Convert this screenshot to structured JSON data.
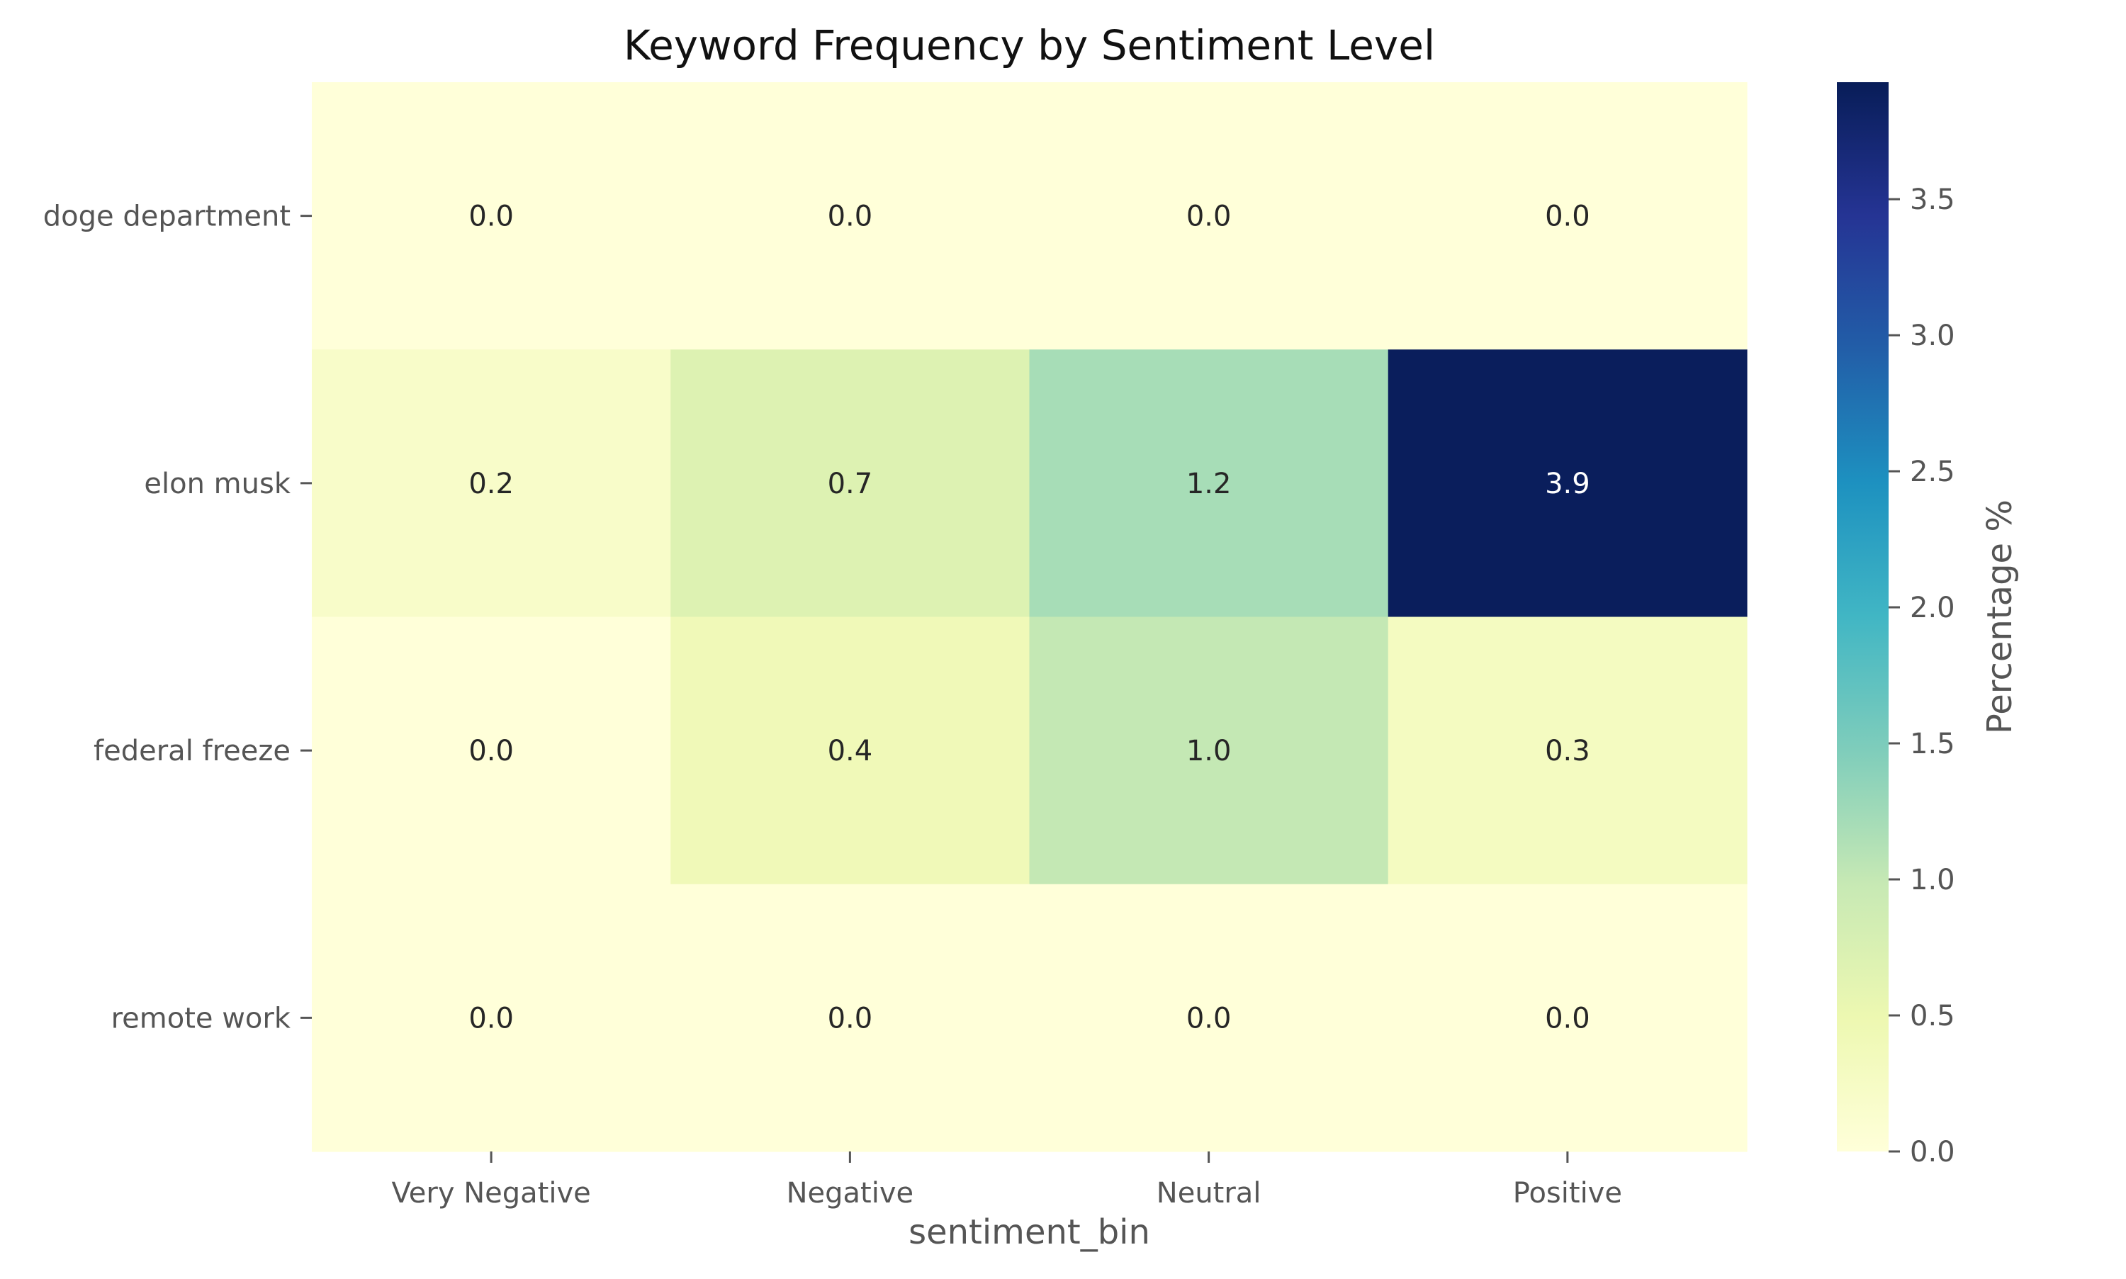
{
  "chart_data": {
    "type": "heatmap",
    "title": "Keyword Frequency by Sentiment Level",
    "xlabel": "sentiment_bin",
    "ylabel": "",
    "x_categories": [
      "Very Negative",
      "Negative",
      "Neutral",
      "Positive"
    ],
    "y_categories": [
      "doge department",
      "elon musk",
      "federal freeze",
      "remote work"
    ],
    "values": [
      [
        0.0,
        0.0,
        0.0,
        0.0
      ],
      [
        0.2,
        0.7,
        1.2,
        3.9
      ],
      [
        0.0,
        0.4,
        1.0,
        0.3
      ],
      [
        0.0,
        0.0,
        0.0,
        0.0
      ]
    ],
    "value_labels": [
      [
        "0.0",
        "0.0",
        "0.0",
        "0.0"
      ],
      [
        "0.2",
        "0.7",
        "1.2",
        "3.9"
      ],
      [
        "0.0",
        "0.4",
        "1.0",
        "0.3"
      ],
      [
        "0.0",
        "0.0",
        "0.0",
        "0.0"
      ]
    ],
    "colorbar": {
      "label": "Percentage %",
      "range": [
        0.0,
        3.93
      ],
      "ticks": [
        0.0,
        0.5,
        1.0,
        1.5,
        2.0,
        2.5,
        3.0,
        3.5
      ],
      "tick_labels": [
        "0.0",
        "0.5",
        "1.0",
        "1.5",
        "2.0",
        "2.5",
        "3.0",
        "3.5"
      ],
      "colormap": "YlGnBu",
      "colors": [
        "#ffffd9",
        "#edf8b1",
        "#c7e9b4",
        "#7fcdbb",
        "#41b6c4",
        "#1d91c0",
        "#225ea8",
        "#253494",
        "#081d58"
      ]
    },
    "grid": false,
    "legend": "colorbar-right"
  }
}
